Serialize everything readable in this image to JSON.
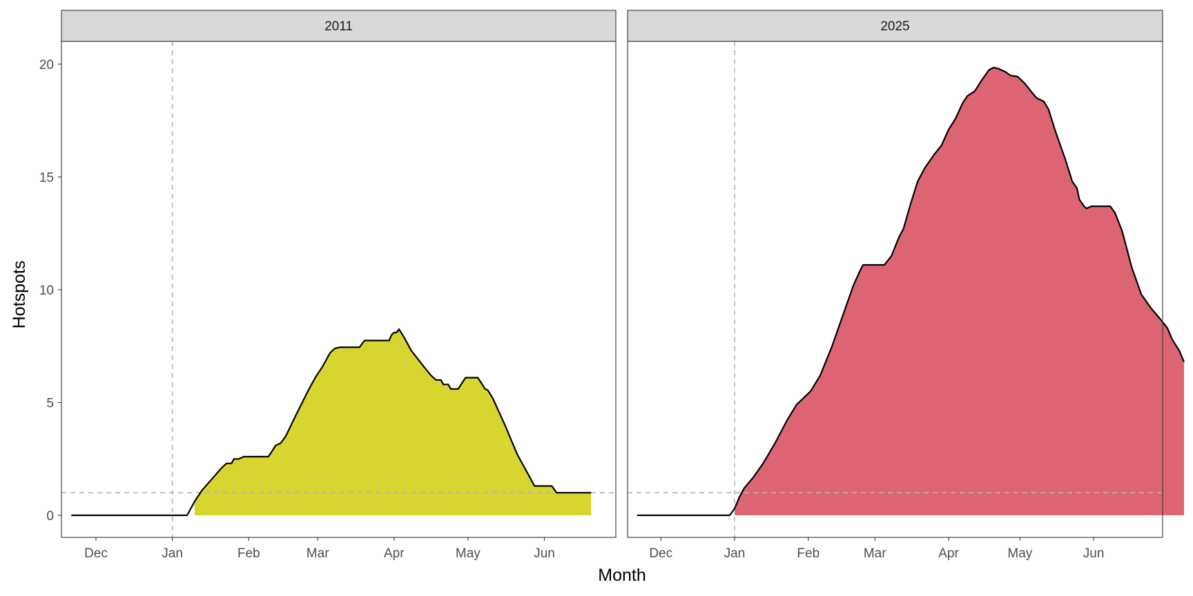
{
  "chart_data": {
    "type": "area",
    "xlabel": "Month",
    "ylabel": "Hotspots",
    "ylim": [
      -1,
      21
    ],
    "yticks": [
      0,
      5,
      10,
      15,
      20
    ],
    "x_axis": {
      "unit": "month",
      "range": [
        "2010-11-17",
        "2011-06-30"
      ],
      "ticks": [
        {
          "date": "2010-12-01",
          "label": "Dec"
        },
        {
          "date": "2011-01-01",
          "label": "Jan"
        },
        {
          "date": "2011-02-01",
          "label": "Feb"
        },
        {
          "date": "2011-03-01",
          "label": "Mar"
        },
        {
          "date": "2011-04-01",
          "label": "Apr"
        },
        {
          "date": "2011-05-01",
          "label": "May"
        },
        {
          "date": "2011-06-01",
          "label": "Jun"
        }
      ]
    },
    "reference_lines": {
      "vertical_date": "2011-01-01",
      "horizontal_y": 1,
      "style": "dashed",
      "color": "#b3b3b3"
    },
    "panels": [
      {
        "label": "2011",
        "fill_color": "#d7d631",
        "fill_start": "2011-01-08",
        "series": [
          [
            "2010-11-21",
            0
          ],
          [
            "2011-01-07",
            0
          ],
          [
            "2011-01-10",
            0.6
          ],
          [
            "2011-01-13",
            1.1
          ],
          [
            "2011-01-17",
            1.6
          ],
          [
            "2011-01-21",
            2.1
          ],
          [
            "2011-01-23",
            2.3
          ],
          [
            "2011-01-25",
            2.3
          ],
          [
            "2011-01-26",
            2.5
          ],
          [
            "2011-01-28",
            2.5
          ],
          [
            "2011-01-30",
            2.6
          ],
          [
            "2011-02-06",
            2.6
          ],
          [
            "2011-02-09",
            2.6
          ],
          [
            "2011-02-12",
            3.1
          ],
          [
            "2011-02-14",
            3.2
          ],
          [
            "2011-02-16",
            3.5
          ],
          [
            "2011-02-20",
            4.4
          ],
          [
            "2011-02-25",
            5.5
          ],
          [
            "2011-02-28",
            6.1
          ],
          [
            "2011-03-03",
            6.6
          ],
          [
            "2011-03-06",
            7.2
          ],
          [
            "2011-03-08",
            7.4
          ],
          [
            "2011-03-10",
            7.45
          ],
          [
            "2011-03-18",
            7.45
          ],
          [
            "2011-03-20",
            7.75
          ],
          [
            "2011-03-26",
            7.75
          ],
          [
            "2011-03-28",
            7.75
          ],
          [
            "2011-03-30",
            7.75
          ],
          [
            "2011-03-31",
            8.0
          ],
          [
            "2011-04-01",
            8.1
          ],
          [
            "2011-04-02",
            8.1
          ],
          [
            "2011-04-03",
            8.25
          ],
          [
            "2011-04-05",
            7.9
          ],
          [
            "2011-04-08",
            7.3
          ],
          [
            "2011-04-13",
            6.6
          ],
          [
            "2011-04-16",
            6.2
          ],
          [
            "2011-04-18",
            6.0
          ],
          [
            "2011-04-20",
            6.0
          ],
          [
            "2011-04-21",
            5.8
          ],
          [
            "2011-04-23",
            5.8
          ],
          [
            "2011-04-24",
            5.6
          ],
          [
            "2011-04-27",
            5.6
          ],
          [
            "2011-04-30",
            6.1
          ],
          [
            "2011-05-05",
            6.1
          ],
          [
            "2011-05-08",
            5.6
          ],
          [
            "2011-05-09",
            5.55
          ],
          [
            "2011-05-11",
            5.2
          ],
          [
            "2011-05-16",
            4.0
          ],
          [
            "2011-05-21",
            2.7
          ],
          [
            "2011-05-24",
            2.1
          ],
          [
            "2011-05-27",
            1.5
          ],
          [
            "2011-05-28",
            1.3
          ],
          [
            "2011-06-01",
            1.3
          ],
          [
            "2011-06-04",
            1.3
          ],
          [
            "2011-06-06",
            1.0
          ],
          [
            "2011-06-20",
            1.0
          ]
        ]
      },
      {
        "label": "2025",
        "fill_color": "#dd6472",
        "fill_start": "2011-01-01",
        "series": [
          [
            "2010-11-21",
            0
          ],
          [
            "2010-12-30",
            0
          ],
          [
            "2011-01-01",
            0.3
          ],
          [
            "2011-01-03",
            0.8
          ],
          [
            "2011-01-05",
            1.2
          ],
          [
            "2011-01-09",
            1.7
          ],
          [
            "2011-01-13",
            2.3
          ],
          [
            "2011-01-18",
            3.2
          ],
          [
            "2011-01-23",
            4.2
          ],
          [
            "2011-01-27",
            4.9
          ],
          [
            "2011-01-31",
            5.3
          ],
          [
            "2011-02-02",
            5.5
          ],
          [
            "2011-02-06",
            6.2
          ],
          [
            "2011-02-11",
            7.5
          ],
          [
            "2011-02-16",
            9.0
          ],
          [
            "2011-02-20",
            10.2
          ],
          [
            "2011-02-23",
            10.9
          ],
          [
            "2011-02-24",
            11.1
          ],
          [
            "2011-02-26",
            11.1
          ],
          [
            "2011-03-05",
            11.1
          ],
          [
            "2011-03-08",
            11.5
          ],
          [
            "2011-03-11",
            12.3
          ],
          [
            "2011-03-13",
            12.7
          ],
          [
            "2011-03-16",
            13.8
          ],
          [
            "2011-03-19",
            14.8
          ],
          [
            "2011-03-22",
            15.4
          ],
          [
            "2011-03-26",
            16.0
          ],
          [
            "2011-03-29",
            16.4
          ],
          [
            "2011-04-01",
            17.1
          ],
          [
            "2011-04-04",
            17.6
          ],
          [
            "2011-04-07",
            18.3
          ],
          [
            "2011-04-09",
            18.6
          ],
          [
            "2011-04-12",
            18.8
          ],
          [
            "2011-04-15",
            19.3
          ],
          [
            "2011-04-18",
            19.75
          ],
          [
            "2011-04-20",
            19.85
          ],
          [
            "2011-04-22",
            19.8
          ],
          [
            "2011-04-25",
            19.65
          ],
          [
            "2011-04-27",
            19.5
          ],
          [
            "2011-04-30",
            19.45
          ],
          [
            "2011-05-03",
            19.15
          ],
          [
            "2011-05-06",
            18.75
          ],
          [
            "2011-05-08",
            18.5
          ],
          [
            "2011-05-11",
            18.35
          ],
          [
            "2011-05-13",
            18.0
          ],
          [
            "2011-05-16",
            17.0
          ],
          [
            "2011-05-20",
            15.8
          ],
          [
            "2011-05-23",
            14.8
          ],
          [
            "2011-05-25",
            14.5
          ],
          [
            "2011-05-26",
            14.0
          ],
          [
            "2011-05-28",
            13.7
          ],
          [
            "2011-05-29",
            13.6
          ],
          [
            "2011-05-31",
            13.7
          ],
          [
            "2011-06-08",
            13.7
          ],
          [
            "2011-06-10",
            13.4
          ],
          [
            "2011-06-13",
            12.6
          ],
          [
            "2011-06-17",
            11.0
          ],
          [
            "2011-06-21",
            9.8
          ],
          [
            "2011-06-25",
            9.2
          ],
          [
            "2011-06-29",
            8.7
          ],
          [
            "2011-07-02",
            8.3
          ],
          [
            "2011-07-04",
            7.8
          ],
          [
            "2011-07-07",
            7.3
          ],
          [
            "2011-07-09",
            6.8
          ]
        ]
      }
    ]
  }
}
